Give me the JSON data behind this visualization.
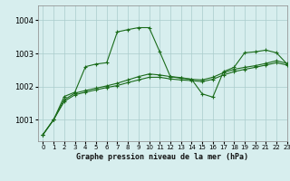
{
  "title": "Graphe pression niveau de la mer (hPa)",
  "bg_color": "#d7eeee",
  "grid_color": "#aacccc",
  "line_color": "#1a6b1a",
  "marker_color": "#1a6b1a",
  "xlim": [
    -0.5,
    23
  ],
  "ylim": [
    1000.35,
    1004.45
  ],
  "yticks": [
    1001,
    1002,
    1003,
    1004
  ],
  "xticks": [
    0,
    1,
    2,
    3,
    4,
    5,
    6,
    7,
    8,
    9,
    10,
    11,
    12,
    13,
    14,
    15,
    16,
    17,
    18,
    19,
    20,
    21,
    22,
    23
  ],
  "series": [
    [
      1000.55,
      1001.0,
      1001.55,
      1001.75,
      1001.83,
      1001.9,
      1001.97,
      1002.03,
      1002.12,
      1002.2,
      1002.28,
      1002.28,
      1002.23,
      1002.2,
      1002.18,
      1002.15,
      1002.22,
      1002.35,
      1002.45,
      1002.52,
      1002.58,
      1002.65,
      1002.72,
      1002.65
    ],
    [
      1000.55,
      1001.0,
      1001.6,
      1001.8,
      1001.88,
      1001.95,
      1002.02,
      1002.1,
      1002.2,
      1002.3,
      1002.38,
      1002.35,
      1002.3,
      1002.27,
      1002.22,
      1002.2,
      1002.28,
      1002.42,
      1002.52,
      1002.58,
      1002.63,
      1002.7,
      1002.78,
      1002.7
    ],
    [
      1000.55,
      1001.0,
      1001.7,
      1001.83,
      1002.6,
      1002.68,
      1002.72,
      1003.65,
      1003.72,
      1003.78,
      1003.78,
      1003.05,
      1002.3,
      1002.25,
      1002.22,
      1001.78,
      1001.68,
      1002.45,
      1002.58,
      1003.02,
      1003.05,
      1003.1,
      1003.02,
      1002.68
    ]
  ],
  "figsize": [
    3.2,
    2.0
  ],
  "dpi": 100
}
